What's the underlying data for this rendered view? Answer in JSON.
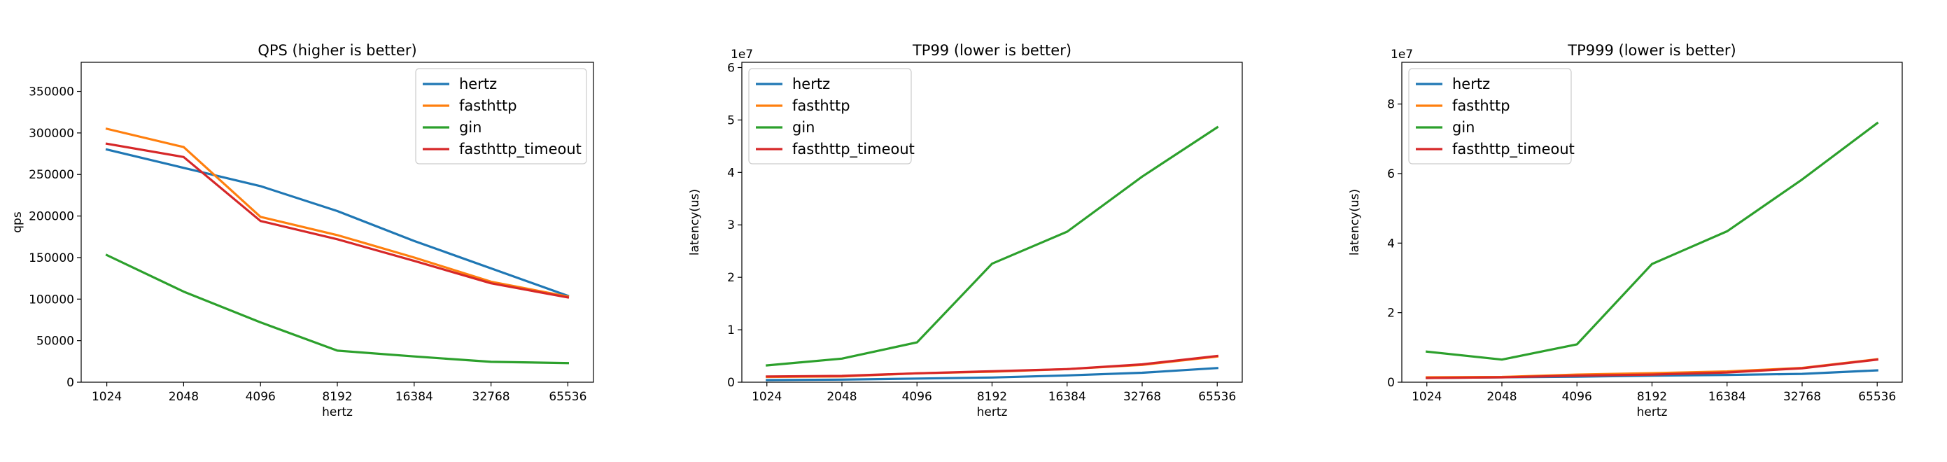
{
  "chart_data": [
    {
      "type": "line",
      "title": "QPS (higher is better)",
      "xlabel": "hertz",
      "ylabel": "qps",
      "offset": "",
      "categories": [
        "1024",
        "2048",
        "4096",
        "8192",
        "16384",
        "32768",
        "65536"
      ],
      "ylim": [
        0,
        385000
      ],
      "yticks": [
        0,
        50000,
        100000,
        150000,
        200000,
        250000,
        300000,
        350000
      ],
      "legend_position": "upper right",
      "series": [
        {
          "name": "hertz",
          "color": "#1f77b4",
          "values": [
            280000,
            258000,
            236000,
            206000,
            170000,
            137000,
            104000
          ]
        },
        {
          "name": "fasthttp",
          "color": "#ff7f0e",
          "values": [
            305000,
            283000,
            199000,
            177000,
            150000,
            121000,
            103000
          ]
        },
        {
          "name": "gin",
          "color": "#2ca02c",
          "values": [
            153000,
            109000,
            72000,
            38000,
            31000,
            24500,
            23000
          ]
        },
        {
          "name": "fasthttp_timeout",
          "color": "#d62728",
          "values": [
            287000,
            271000,
            194000,
            172000,
            146000,
            119000,
            102000
          ]
        }
      ]
    },
    {
      "type": "line",
      "title": "TP99 (lower is better)",
      "xlabel": "hertz",
      "ylabel": "latency(us)",
      "offset": "1e7",
      "categories": [
        "1024",
        "2048",
        "4096",
        "8192",
        "16384",
        "32768",
        "65536"
      ],
      "ylim": [
        0,
        6.1
      ],
      "yticks": [
        0,
        1,
        2,
        3,
        4,
        5,
        6
      ],
      "legend_position": "upper left",
      "series": [
        {
          "name": "hertz",
          "color": "#1f77b4",
          "values": [
            0.04,
            0.05,
            0.07,
            0.09,
            0.13,
            0.18,
            0.27
          ]
        },
        {
          "name": "fasthttp",
          "color": "#ff7f0e",
          "values": [
            0.1,
            0.11,
            0.17,
            0.2,
            0.25,
            0.33,
            0.49
          ]
        },
        {
          "name": "gin",
          "color": "#2ca02c",
          "values": [
            0.32,
            0.45,
            0.76,
            2.26,
            2.87,
            3.92,
            4.86
          ]
        },
        {
          "name": "fasthttp_timeout",
          "color": "#d62728",
          "values": [
            0.11,
            0.12,
            0.17,
            0.21,
            0.25,
            0.34,
            0.5
          ]
        }
      ]
    },
    {
      "type": "line",
      "title": "TP999 (lower is better)",
      "xlabel": "hertz",
      "ylabel": "latency(us)",
      "offset": "1e7",
      "categories": [
        "1024",
        "2048",
        "4096",
        "8192",
        "16384",
        "32768",
        "65536"
      ],
      "ylim": [
        0,
        9.2
      ],
      "yticks": [
        0,
        2,
        4,
        6,
        8
      ],
      "legend_position": "upper left",
      "series": [
        {
          "name": "hertz",
          "color": "#1f77b4",
          "values": [
            0.12,
            0.14,
            0.16,
            0.19,
            0.21,
            0.24,
            0.34
          ]
        },
        {
          "name": "fasthttp",
          "color": "#ff7f0e",
          "values": [
            0.14,
            0.15,
            0.22,
            0.26,
            0.31,
            0.41,
            0.66
          ]
        },
        {
          "name": "gin",
          "color": "#2ca02c",
          "values": [
            0.88,
            0.65,
            1.09,
            3.4,
            4.34,
            5.83,
            7.45
          ]
        },
        {
          "name": "fasthttp_timeout",
          "color": "#d62728",
          "values": [
            0.12,
            0.14,
            0.19,
            0.22,
            0.28,
            0.4,
            0.65
          ]
        }
      ]
    }
  ]
}
